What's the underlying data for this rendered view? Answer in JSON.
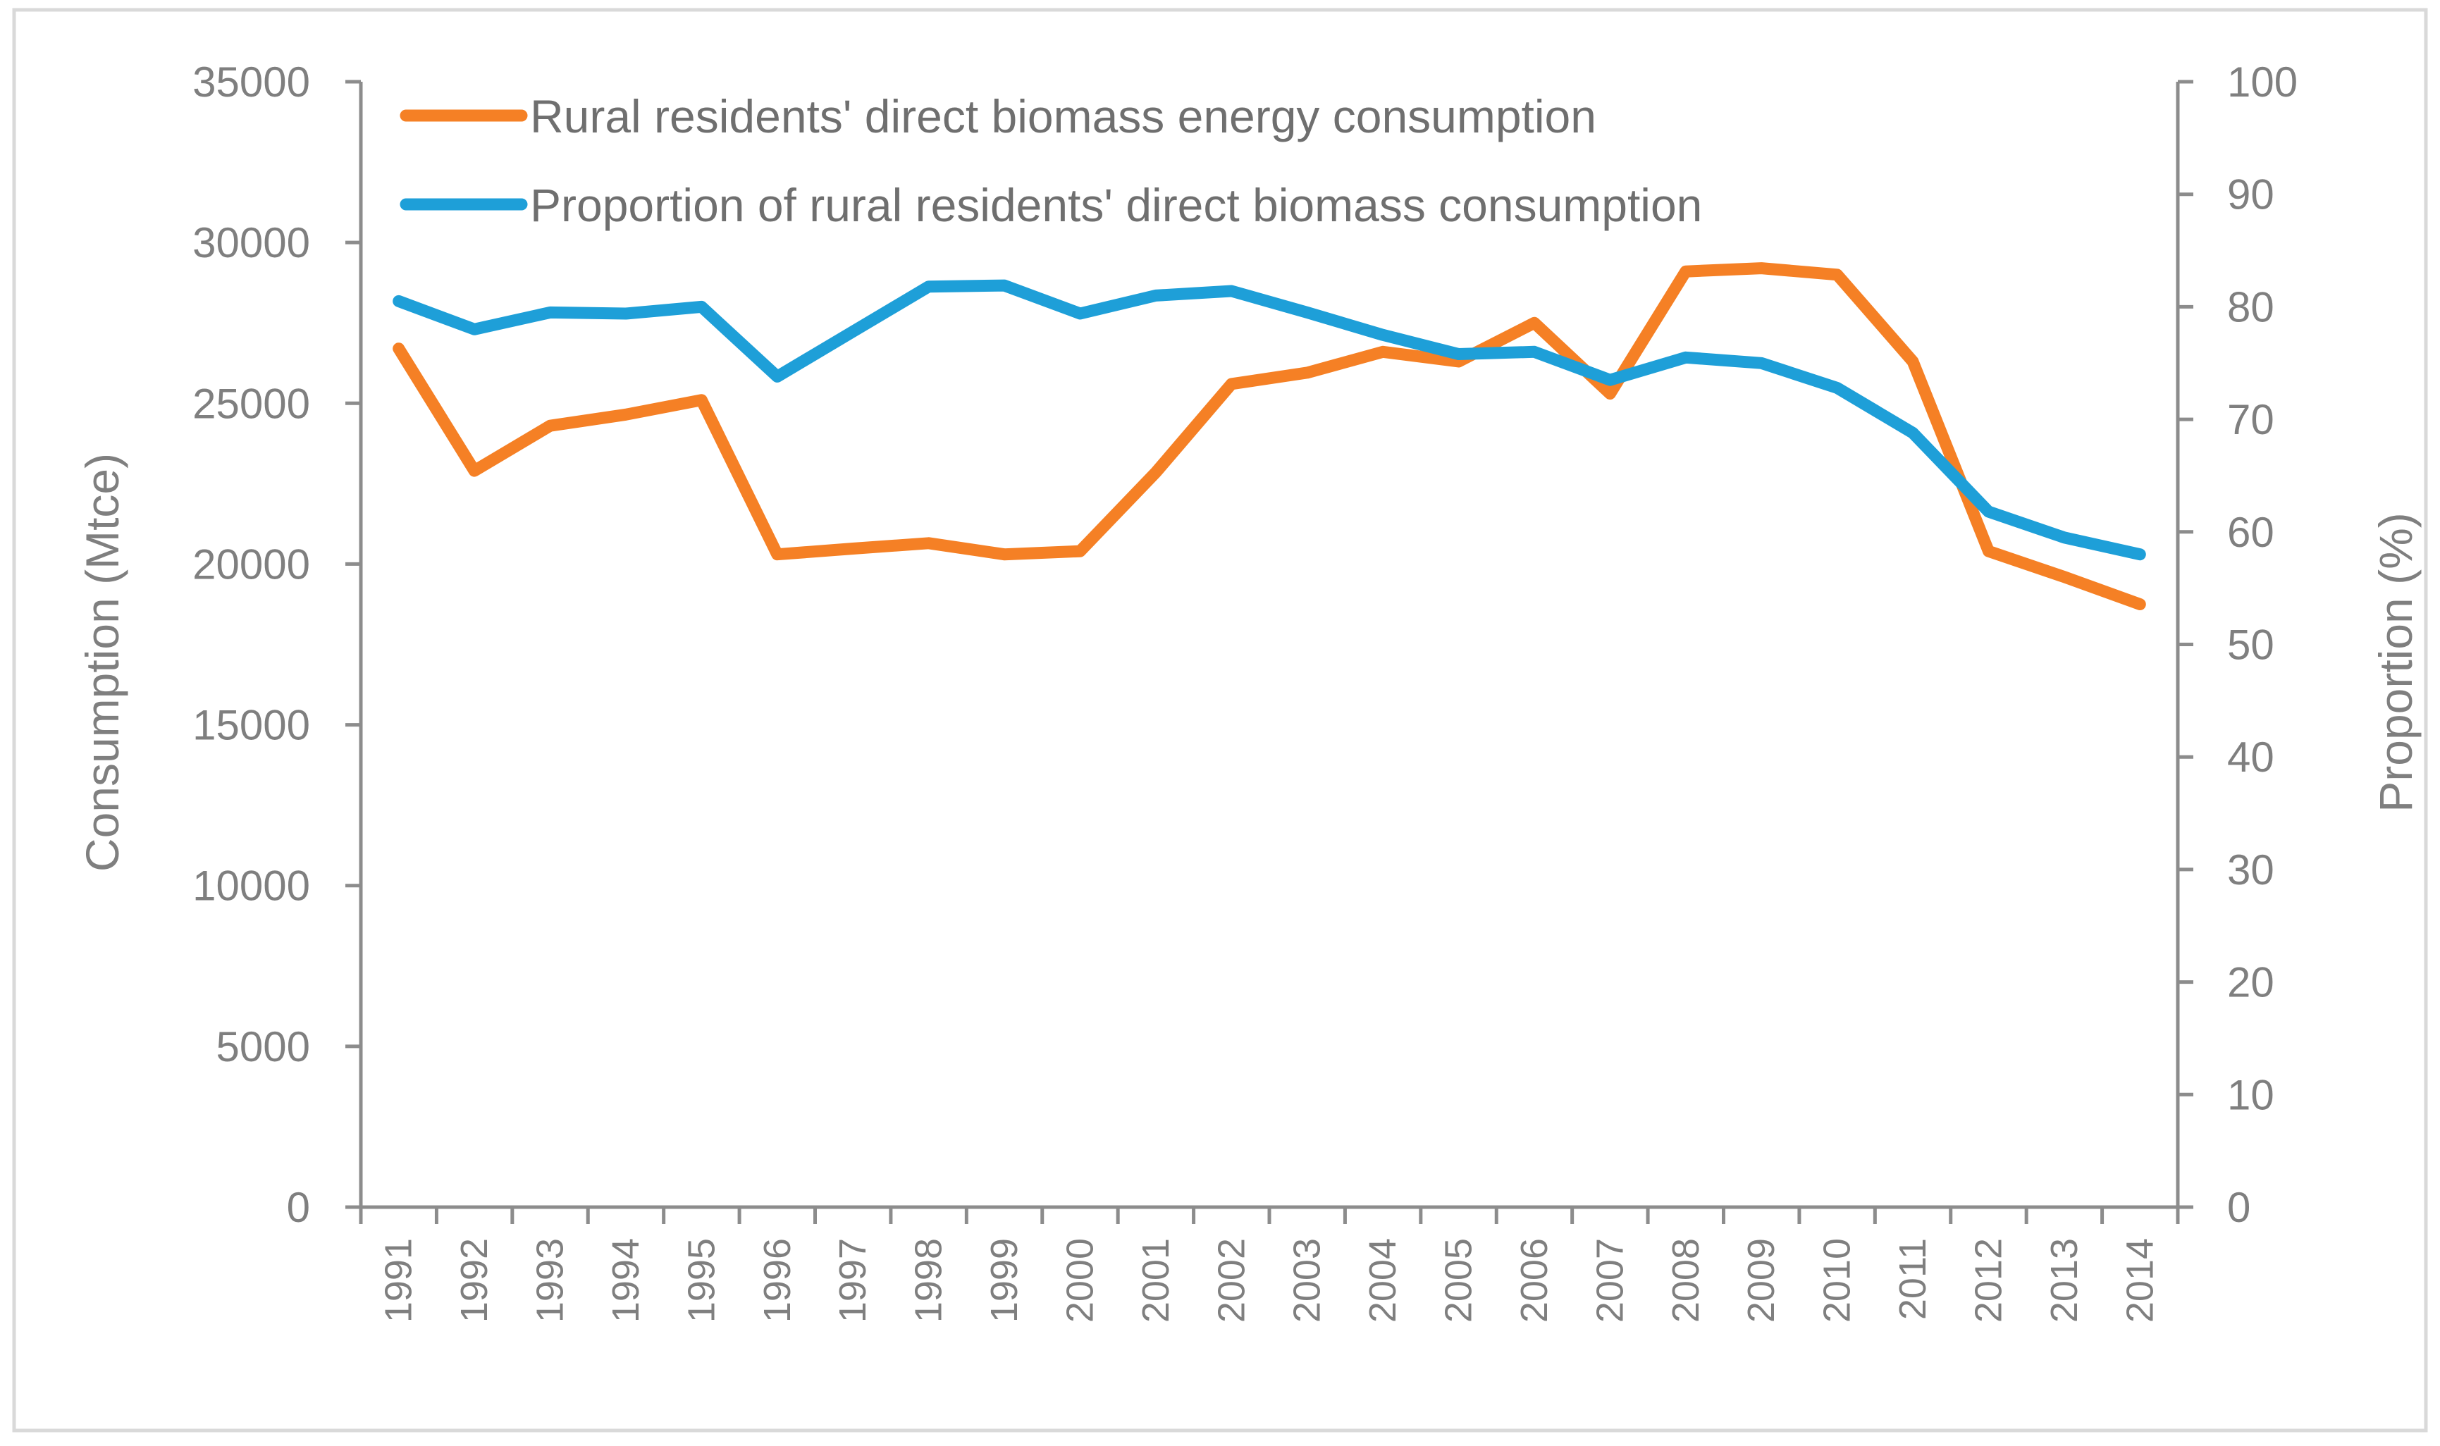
{
  "chart_data": {
    "type": "line",
    "title": "",
    "categories": [
      "1991",
      "1992",
      "1993",
      "1994",
      "1995",
      "1996",
      "1997",
      "1998",
      "1999",
      "2000",
      "2001",
      "2002",
      "2003",
      "2004",
      "2005",
      "2006",
      "2007",
      "2008",
      "2009",
      "2010",
      "2011",
      "2012",
      "2013",
      "2014"
    ],
    "series": [
      {
        "name": "Rural residents' direct biomass energy consumption",
        "axis": "left",
        "color": "#f58025",
        "values": [
          26700,
          22900,
          24300,
          24650,
          25100,
          20300,
          20480,
          20650,
          20300,
          20400,
          22850,
          25600,
          25950,
          26600,
          26300,
          27500,
          25300,
          29100,
          29200,
          29000,
          26300,
          20400,
          19600,
          18750
        ]
      },
      {
        "name": "Proportion of rural residents' direct biomass consumption",
        "axis": "right",
        "color": "#1e9fd8",
        "values": [
          80.5,
          78.0,
          79.5,
          79.4,
          80.0,
          73.8,
          77.8,
          81.8,
          81.9,
          79.4,
          81.0,
          81.4,
          79.5,
          77.5,
          75.8,
          76.0,
          73.5,
          75.5,
          75.0,
          72.8,
          68.8,
          61.8,
          59.5,
          58.0
        ]
      }
    ],
    "ylabel_left": "Consumption (Mtce)",
    "ylabel_right": "Proportion (%)",
    "ylim_left": [
      0,
      35000
    ],
    "ylim_right": [
      0,
      100
    ],
    "yticks_left": [
      "0",
      "5000",
      "10000",
      "15000",
      "20000",
      "25000",
      "30000",
      "35000"
    ],
    "yticks_right": [
      "0",
      "10",
      "20",
      "30",
      "40",
      "50",
      "60",
      "70",
      "80",
      "90",
      "100"
    ],
    "legend_position": "top-left",
    "grid": false
  }
}
